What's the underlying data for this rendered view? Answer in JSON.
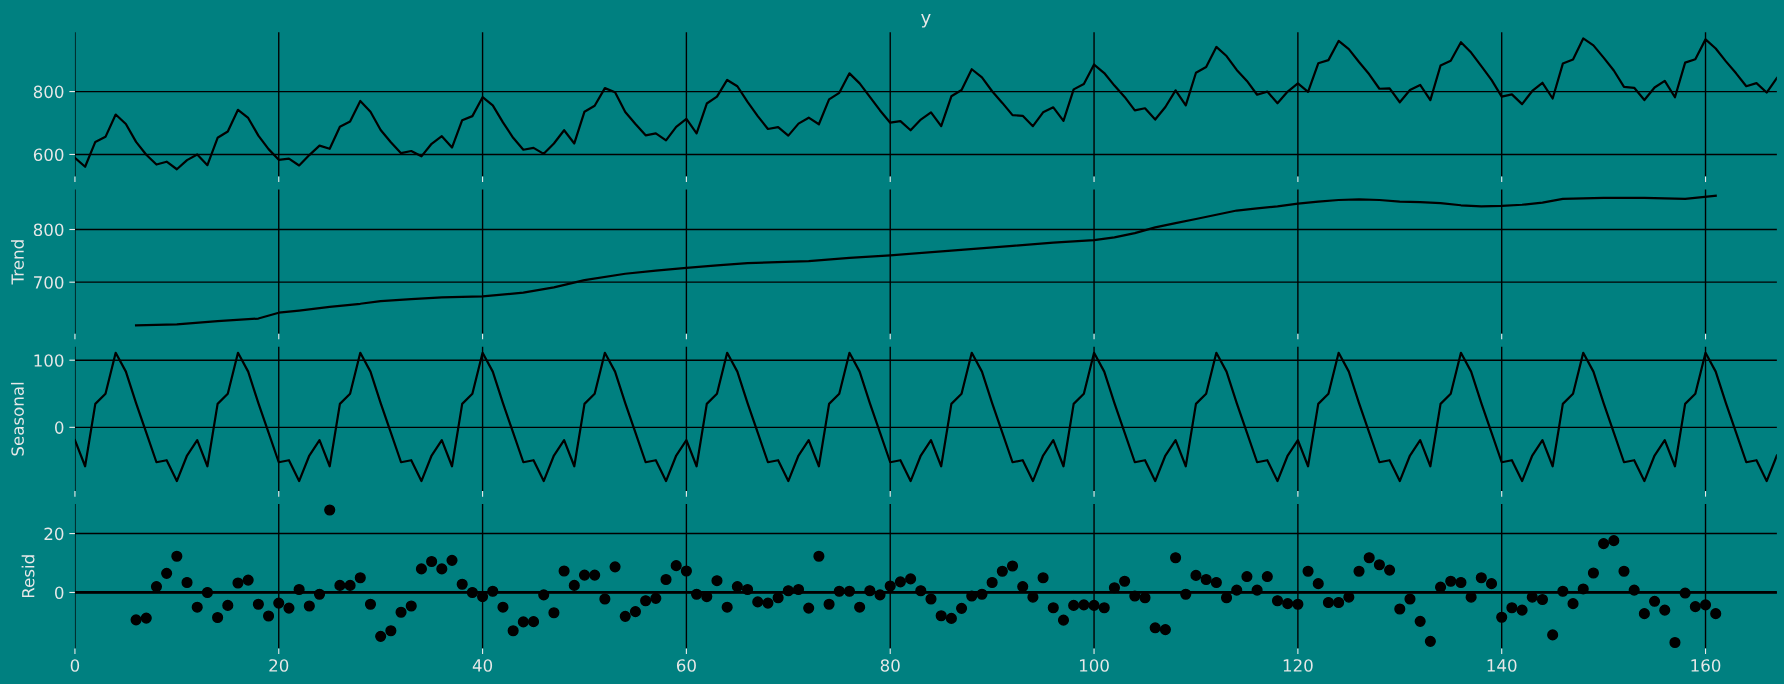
{
  "chart_data": [
    {
      "type": "line",
      "title": "y",
      "grid": true,
      "tick_labels": "y",
      "xlim": [
        0,
        167
      ],
      "xticks": [
        0,
        20,
        40,
        60,
        80,
        100,
        120,
        140,
        160
      ],
      "ylim": [
        530,
        989
      ],
      "yticks": [
        600,
        800
      ],
      "x": [
        0,
        1,
        2,
        3,
        4,
        5,
        6,
        7,
        8,
        9,
        10,
        11,
        12,
        13,
        14,
        15,
        16,
        17,
        18,
        19,
        20,
        21,
        22,
        23,
        24,
        25,
        26,
        27,
        28,
        29,
        30,
        31,
        32,
        33,
        34,
        35,
        36,
        37,
        38,
        39,
        40,
        41,
        42,
        43,
        44,
        45,
        46,
        47,
        48,
        49,
        50,
        51,
        52,
        53,
        54,
        55,
        56,
        57,
        58,
        59,
        60,
        61,
        62,
        63,
        64,
        65,
        66,
        67,
        68,
        69,
        70,
        71,
        72,
        73,
        74,
        75,
        76,
        77,
        78,
        79,
        80,
        81,
        82,
        83,
        84,
        85,
        86,
        87,
        88,
        89,
        90,
        91,
        92,
        93,
        94,
        95,
        96,
        97,
        98,
        99,
        100,
        101,
        102,
        103,
        104,
        105,
        106,
        107,
        108,
        109,
        110,
        111,
        112,
        113,
        114,
        115,
        116,
        117,
        118,
        119,
        120,
        121,
        122,
        123,
        124,
        125,
        126,
        127,
        128,
        129,
        130,
        131,
        132,
        133,
        134,
        135,
        136,
        137,
        138,
        139,
        140,
        141,
        142,
        143,
        144,
        145,
        146,
        147,
        148,
        149,
        150,
        151,
        152,
        153,
        154,
        155,
        156,
        157,
        158,
        159,
        160,
        161,
        162,
        163,
        164,
        165,
        166,
        167
      ],
      "series": [
        {
          "color": "#000000",
          "values": [
            589,
            561,
            640,
            656,
            727,
            697,
            640,
            599,
            568,
            577,
            553,
            582,
            600,
            566,
            653,
            673,
            742,
            716,
            660,
            617,
            583,
            587,
            565,
            598,
            628,
            618,
            688,
            705,
            770,
            736,
            678,
            639,
            604,
            611,
            594,
            634,
            658,
            622,
            709,
            722,
            782,
            756,
            702,
            653,
            615,
            621,
            602,
            635,
            677,
            635,
            736,
            755,
            811,
            798,
            735,
            697,
            661,
            667,
            645,
            688,
            713,
            667,
            762,
            784,
            837,
            817,
            767,
            722,
            681,
            687,
            660,
            698,
            717,
            696,
            775,
            796,
            858,
            826,
            783,
            740,
            701,
            706,
            677,
            711,
            734,
            690,
            785,
            805,
            871,
            845,
            801,
            764,
            725,
            723,
            690,
            734,
            750,
            707,
            807,
            824,
            886,
            859,
            819,
            783,
            740,
            747,
            711,
            751,
            804,
            756,
            860,
            878,
            942,
            913,
            869,
            834,
            790,
            800,
            763,
            800,
            826,
            799,
            890,
            900,
            961,
            935,
            894,
            855,
            809,
            810,
            766,
            805,
            821,
            773,
            883,
            898,
            957,
            924,
            881,
            837,
            784,
            791,
            760,
            802,
            828,
            778,
            889,
            902,
            969,
            947,
            908,
            867,
            815,
            812,
            773,
            813,
            834,
            782,
            892,
            903,
            966,
            937,
            896,
            858,
            817,
            827,
            797,
            843
          ]
        }
      ]
    },
    {
      "type": "line",
      "ylabel": "Trend",
      "grid": true,
      "tick_labels": "y",
      "xlim": [
        0,
        167
      ],
      "xticks": [
        0,
        20,
        40,
        60,
        80,
        100,
        120,
        140,
        160
      ],
      "ylim": [
        602,
        876
      ],
      "yticks": [
        700,
        800
      ],
      "series": [
        {
          "color": "#000000",
          "x": [
            6,
            10,
            14,
            18,
            20,
            22,
            25,
            28,
            30,
            33,
            36,
            40,
            44,
            47,
            50,
            54,
            57,
            60,
            63,
            66,
            72,
            76,
            80,
            86,
            92,
            96,
            100,
            102,
            104,
            106,
            108,
            110,
            112,
            114,
            116,
            118,
            120,
            122,
            124,
            126,
            128,
            130,
            132,
            134,
            136,
            138,
            140,
            142,
            144,
            146,
            148,
            150,
            154,
            156,
            158,
            161
          ],
          "values": [
            618,
            620,
            626,
            631,
            642,
            646,
            653,
            659,
            664,
            668,
            671,
            673,
            680,
            690,
            704,
            716,
            722,
            727,
            732,
            736,
            740,
            746,
            751,
            760,
            769,
            775,
            780,
            785,
            793,
            804,
            812,
            820,
            828,
            836,
            840,
            844,
            849,
            853,
            856,
            857,
            856,
            853,
            852,
            850,
            846,
            844,
            845,
            847,
            851,
            858,
            859,
            860,
            860,
            859,
            858,
            864
          ]
        }
      ]
    },
    {
      "type": "line",
      "ylabel": "Seasonal",
      "grid": true,
      "tick_labels": "y",
      "xlim": [
        0,
        167
      ],
      "xticks": [
        0,
        20,
        40,
        60,
        80,
        100,
        120,
        140,
        160
      ],
      "ylim": [
        -95,
        120
      ],
      "yticks": [
        0,
        100
      ],
      "x": [
        0,
        1,
        2,
        3,
        4,
        5,
        6,
        7,
        8,
        9,
        10,
        11,
        12,
        13,
        14,
        15,
        16,
        17,
        18,
        19,
        20,
        21,
        22,
        23,
        24,
        25,
        26,
        27,
        28,
        29,
        30,
        31,
        32,
        33,
        34,
        35,
        36,
        37,
        38,
        39,
        40,
        41,
        42,
        43,
        44,
        45,
        46,
        47,
        48,
        49,
        50,
        51,
        52,
        53,
        54,
        55,
        56,
        57,
        58,
        59,
        60,
        61,
        62,
        63,
        64,
        65,
        66,
        67,
        68,
        69,
        70,
        71,
        72,
        73,
        74,
        75,
        76,
        77,
        78,
        79,
        80,
        81,
        82,
        83,
        84,
        85,
        86,
        87,
        88,
        89,
        90,
        91,
        92,
        93,
        94,
        95,
        96,
        97,
        98,
        99,
        100,
        101,
        102,
        103,
        104,
        105,
        106,
        107,
        108,
        109,
        110,
        111,
        112,
        113,
        114,
        115,
        116,
        117,
        118,
        119,
        120,
        121,
        122,
        123,
        124,
        125,
        126,
        127,
        128,
        129,
        130,
        131,
        132,
        133,
        134,
        135,
        136,
        137,
        138,
        139,
        140,
        141,
        142,
        143,
        144,
        145,
        146,
        147,
        148,
        149,
        150,
        151,
        152,
        153,
        154,
        155,
        156,
        157,
        158,
        159,
        160,
        161,
        162,
        163,
        164,
        165,
        166,
        167
      ],
      "series": [
        {
          "color": "#000000",
          "values": [
            -19,
            -58,
            35,
            50,
            111,
            83,
            36,
            -8,
            -52,
            -49,
            -80,
            -42,
            -19,
            -58,
            35,
            50,
            111,
            83,
            36,
            -8,
            -52,
            -49,
            -80,
            -42,
            -19,
            -58,
            35,
            50,
            111,
            83,
            36,
            -8,
            -52,
            -49,
            -80,
            -42,
            -19,
            -58,
            35,
            50,
            111,
            83,
            36,
            -8,
            -52,
            -49,
            -80,
            -42,
            -19,
            -58,
            35,
            50,
            111,
            83,
            36,
            -8,
            -52,
            -49,
            -80,
            -42,
            -19,
            -58,
            35,
            50,
            111,
            83,
            36,
            -8,
            -52,
            -49,
            -80,
            -42,
            -19,
            -58,
            35,
            50,
            111,
            83,
            36,
            -8,
            -52,
            -49,
            -80,
            -42,
            -19,
            -58,
            35,
            50,
            111,
            83,
            36,
            -8,
            -52,
            -49,
            -80,
            -42,
            -19,
            -58,
            35,
            50,
            111,
            83,
            36,
            -8,
            -52,
            -49,
            -80,
            -42,
            -19,
            -58,
            35,
            50,
            111,
            83,
            36,
            -8,
            -52,
            -49,
            -80,
            -42,
            -19,
            -58,
            35,
            50,
            111,
            83,
            36,
            -8,
            -52,
            -49,
            -80,
            -42,
            -19,
            -58,
            35,
            50,
            111,
            83,
            36,
            -8,
            -52,
            -49,
            -80,
            -42,
            -19,
            -58,
            35,
            50,
            111,
            83,
            36,
            -8,
            -52,
            -49,
            -80,
            -42,
            -19,
            -58,
            35,
            50,
            111,
            83,
            36,
            -8,
            -52,
            -49,
            -80,
            -42
          ]
        }
      ]
    },
    {
      "type": "scatter",
      "ylabel": "Resid",
      "grid": true,
      "marker": "circle",
      "xlim": [
        0,
        167
      ],
      "xticks": [
        0,
        20,
        40,
        60,
        80,
        100,
        120,
        140,
        160
      ],
      "ylim": [
        -19,
        30
      ],
      "yticks": [
        0,
        20
      ],
      "ref_lines": [
        {
          "axis": "y",
          "value": 0,
          "color": "#000000"
        }
      ],
      "x": [
        6,
        7,
        8,
        9,
        10,
        11,
        12,
        13,
        14,
        15,
        16,
        17,
        18,
        19,
        20,
        21,
        22,
        23,
        24,
        25,
        26,
        27,
        28,
        29,
        30,
        31,
        32,
        33,
        34,
        35,
        36,
        37,
        38,
        39,
        40,
        41,
        42,
        43,
        44,
        45,
        46,
        47,
        48,
        49,
        50,
        51,
        52,
        53,
        54,
        55,
        56,
        57,
        58,
        59,
        60,
        61,
        62,
        63,
        64,
        65,
        66,
        67,
        68,
        69,
        70,
        71,
        72,
        73,
        74,
        75,
        76,
        77,
        78,
        79,
        80,
        81,
        82,
        83,
        84,
        85,
        86,
        87,
        88,
        89,
        90,
        91,
        92,
        93,
        94,
        95,
        96,
        97,
        98,
        99,
        100,
        101,
        102,
        103,
        104,
        105,
        106,
        107,
        108,
        109,
        110,
        111,
        112,
        113,
        114,
        115,
        116,
        117,
        118,
        119,
        120,
        121,
        122,
        123,
        124,
        125,
        126,
        127,
        128,
        129,
        130,
        131,
        132,
        133,
        134,
        135,
        136,
        137,
        138,
        139,
        140,
        141,
        142,
        143,
        144,
        145,
        146,
        147,
        148,
        149,
        150,
        151,
        152,
        153,
        154,
        155,
        156,
        157,
        158,
        159,
        160,
        161
      ],
      "series": [
        {
          "color": "#000000",
          "values": [
            -9.3,
            -8.7,
            2,
            6.5,
            12.3,
            3.4,
            -5,
            0,
            -8.5,
            -4.4,
            3.2,
            4.2,
            -4,
            -8,
            -3.6,
            -5.3,
            1,
            -4.6,
            -0.6,
            28,
            2.4,
            2.4,
            5,
            -4,
            -14.9,
            -13,
            -6.7,
            -4.6,
            8,
            10.5,
            8,
            10.9,
            2.8,
            0,
            -1.4,
            0.4,
            -5,
            -13,
            -10,
            -9.9,
            -0.8,
            -6.9,
            7.3,
            2.4,
            5.9,
            5.9,
            -2.2,
            8.7,
            -8.1,
            -6.5,
            -2.8,
            -2,
            4.4,
            9.1,
            7.3,
            -0.6,
            -1.4,
            4,
            -5,
            2,
            1,
            -3.2,
            -3.6,
            -1.8,
            0.6,
            1,
            -5.3,
            12.3,
            -4,
            0.4,
            0.4,
            -5,
            0.6,
            -0.8,
            2.2,
            3.6,
            4.6,
            0.6,
            -2.2,
            -7.9,
            -8.8,
            -5.4,
            -1.2,
            -0.6,
            3.4,
            7.2,
            9,
            2,
            -1.6,
            5,
            -5.2,
            -9.4,
            -4.4,
            -4.2,
            -4.4,
            -5.2,
            1.6,
            3.8,
            -1.2,
            -1.8,
            -12,
            -12.6,
            11.8,
            -0.6,
            5.8,
            4.4,
            3.4,
            -1.8,
            0.8,
            5.4,
            0.8,
            5.4,
            -2.8,
            -3.8,
            -4,
            7.2,
            3,
            -3.4,
            -3.4,
            -1.6,
            7.2,
            11.8,
            9.4,
            7.6,
            -5.6,
            -2.2,
            -9.8,
            -16.6,
            1.8,
            3.8,
            3.4,
            -1.6,
            5,
            3,
            -8.4,
            -5.2,
            -6,
            -1.6,
            -2.4,
            -14.4,
            0.4,
            -3.8,
            1.2,
            6.6,
            16.6,
            17.6,
            7.2,
            0.8,
            -7.2,
            -3,
            -6,
            -17,
            -0.2,
            -4.8,
            -4.2,
            -7.2
          ]
        }
      ]
    }
  ]
}
